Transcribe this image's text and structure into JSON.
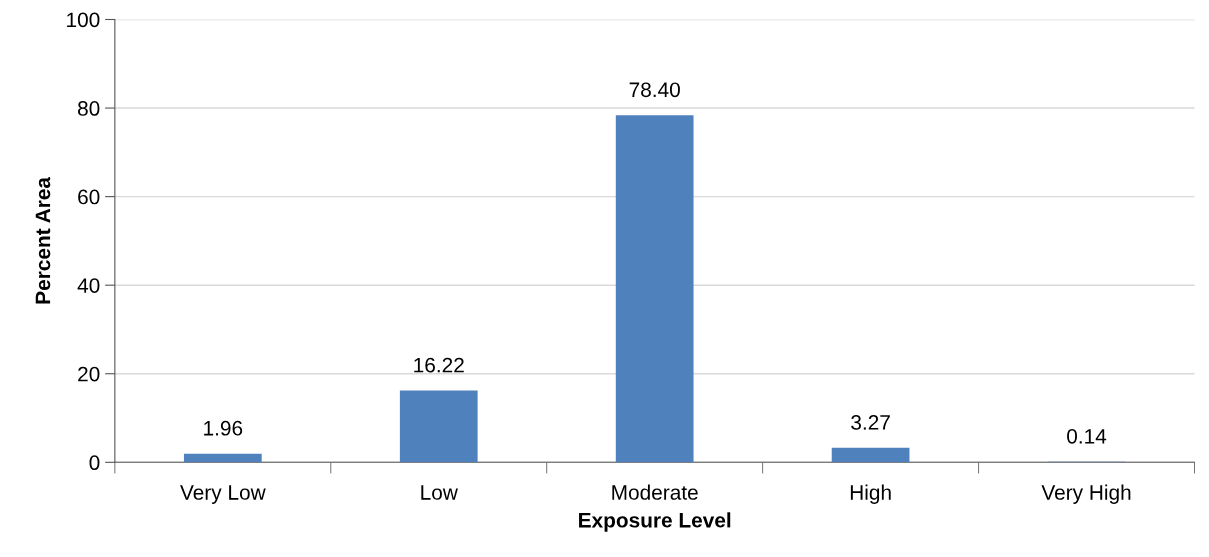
{
  "chart_data": {
    "type": "bar",
    "xlabel": "Exposure Level",
    "ylabel": "Percent Area",
    "categories": [
      "Very Low",
      "Low",
      "Moderate",
      "High",
      "Very High"
    ],
    "values": [
      1.96,
      16.22,
      78.4,
      3.27,
      0.14
    ],
    "value_labels": [
      "1.96",
      "16.22",
      "78.40",
      "3.27",
      "0.14"
    ],
    "color": "#4f81bd",
    "ylim": [
      0,
      100
    ],
    "yticks": [
      0,
      20,
      40,
      60,
      80,
      100
    ],
    "grid": "y",
    "legend": false
  }
}
